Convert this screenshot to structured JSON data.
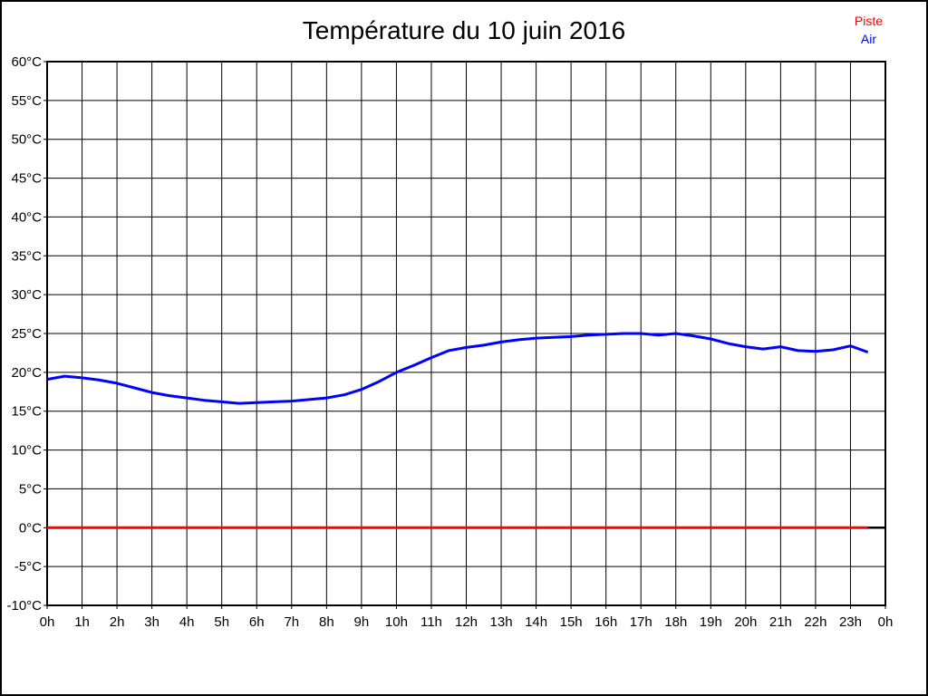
{
  "chart_data": {
    "type": "line",
    "title": "Température du 10 juin 2016",
    "xlabel": "",
    "ylabel": "",
    "xlim": [
      0,
      24
    ],
    "ylim": [
      -10,
      60
    ],
    "grid": true,
    "legend_position": "top-right",
    "background_color": "#ffffff",
    "grid_color": "#000000",
    "zero_line": {
      "value": 0,
      "color": "#000000"
    },
    "x_ticks": [
      {
        "v": 0,
        "label": "0h"
      },
      {
        "v": 1,
        "label": "1h"
      },
      {
        "v": 2,
        "label": "2h"
      },
      {
        "v": 3,
        "label": "3h"
      },
      {
        "v": 4,
        "label": "4h"
      },
      {
        "v": 5,
        "label": "5h"
      },
      {
        "v": 6,
        "label": "6h"
      },
      {
        "v": 7,
        "label": "7h"
      },
      {
        "v": 8,
        "label": "8h"
      },
      {
        "v": 9,
        "label": "9h"
      },
      {
        "v": 10,
        "label": "10h"
      },
      {
        "v": 11,
        "label": "11h"
      },
      {
        "v": 12,
        "label": "12h"
      },
      {
        "v": 13,
        "label": "13h"
      },
      {
        "v": 14,
        "label": "14h"
      },
      {
        "v": 15,
        "label": "15h"
      },
      {
        "v": 16,
        "label": "16h"
      },
      {
        "v": 17,
        "label": "17h"
      },
      {
        "v": 18,
        "label": "18h"
      },
      {
        "v": 19,
        "label": "19h"
      },
      {
        "v": 20,
        "label": "20h"
      },
      {
        "v": 21,
        "label": "21h"
      },
      {
        "v": 22,
        "label": "22h"
      },
      {
        "v": 23,
        "label": "23h"
      },
      {
        "v": 24,
        "label": "0h"
      }
    ],
    "y_ticks": [
      {
        "v": 60,
        "label": "60°C"
      },
      {
        "v": 55,
        "label": "55°C"
      },
      {
        "v": 50,
        "label": "50°C"
      },
      {
        "v": 45,
        "label": "45°C"
      },
      {
        "v": 40,
        "label": "40°C"
      },
      {
        "v": 35,
        "label": "35°C"
      },
      {
        "v": 30,
        "label": "30°C"
      },
      {
        "v": 25,
        "label": "25°C"
      },
      {
        "v": 20,
        "label": "20°C"
      },
      {
        "v": 15,
        "label": "15°C"
      },
      {
        "v": 10,
        "label": "10°C"
      },
      {
        "v": 5,
        "label": "5°C"
      },
      {
        "v": 0,
        "label": "0°C"
      },
      {
        "v": -5,
        "label": "-5°C"
      },
      {
        "v": -10,
        "label": "-10°C"
      }
    ],
    "series": [
      {
        "name": "Piste",
        "color": "#ff0000",
        "points": [
          [
            0,
            0
          ],
          [
            23.5,
            0
          ]
        ]
      },
      {
        "name": "Air",
        "color": "#0000ff",
        "points": [
          [
            0,
            19.1
          ],
          [
            0.5,
            19.5
          ],
          [
            1,
            19.3
          ],
          [
            1.5,
            19.0
          ],
          [
            2,
            18.6
          ],
          [
            2.5,
            18.0
          ],
          [
            3,
            17.4
          ],
          [
            3.5,
            17.0
          ],
          [
            4,
            16.7
          ],
          [
            4.5,
            16.4
          ],
          [
            5,
            16.2
          ],
          [
            5.5,
            16.0
          ],
          [
            6,
            16.1
          ],
          [
            6.5,
            16.2
          ],
          [
            7,
            16.3
          ],
          [
            7.5,
            16.5
          ],
          [
            8,
            16.7
          ],
          [
            8.5,
            17.1
          ],
          [
            9,
            17.8
          ],
          [
            9.5,
            18.8
          ],
          [
            10,
            20.0
          ],
          [
            10.5,
            20.9
          ],
          [
            11,
            21.9
          ],
          [
            11.5,
            22.8
          ],
          [
            12,
            23.2
          ],
          [
            12.5,
            23.5
          ],
          [
            13,
            23.9
          ],
          [
            13.5,
            24.2
          ],
          [
            14,
            24.4
          ],
          [
            14.5,
            24.5
          ],
          [
            15,
            24.6
          ],
          [
            15.5,
            24.8
          ],
          [
            16,
            24.9
          ],
          [
            16.5,
            25.0
          ],
          [
            17,
            25.0
          ],
          [
            17.5,
            24.8
          ],
          [
            18,
            25.0
          ],
          [
            18.5,
            24.7
          ],
          [
            19,
            24.3
          ],
          [
            19.5,
            23.7
          ],
          [
            20,
            23.3
          ],
          [
            20.5,
            23.0
          ],
          [
            21,
            23.3
          ],
          [
            21.5,
            22.8
          ],
          [
            22,
            22.7
          ],
          [
            22.5,
            22.9
          ],
          [
            23,
            23.4
          ],
          [
            23.5,
            22.6
          ]
        ]
      }
    ]
  }
}
